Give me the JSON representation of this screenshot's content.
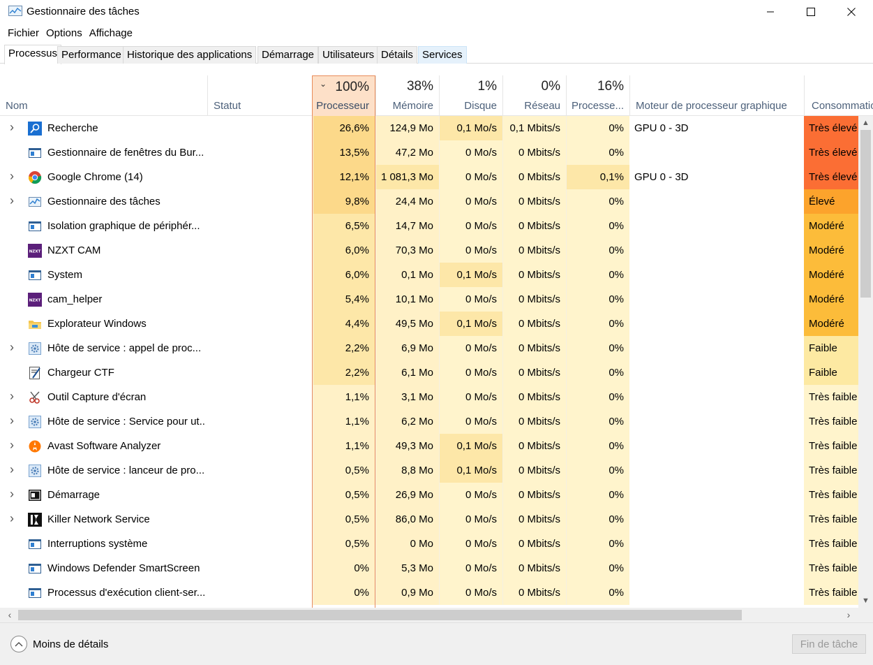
{
  "window": {
    "title": "Gestionnaire des tâches"
  },
  "menu": [
    "Fichier",
    "Options",
    "Affichage"
  ],
  "tabs": [
    {
      "label": "Processus",
      "active": true
    },
    {
      "label": "Performance"
    },
    {
      "label": "Historique des applications"
    },
    {
      "label": "Démarrage"
    },
    {
      "label": "Utilisateurs"
    },
    {
      "label": "Détails"
    },
    {
      "label": "Services",
      "hover": true
    }
  ],
  "columns": {
    "name": "Nom",
    "status": "Statut",
    "cpu": {
      "pct": "100%",
      "label": "Processeur"
    },
    "memory": {
      "pct": "38%",
      "label": "Mémoire"
    },
    "disk": {
      "pct": "1%",
      "label": "Disque"
    },
    "network": {
      "pct": "0%",
      "label": "Réseau"
    },
    "gpu": {
      "pct": "16%",
      "label": "Processe..."
    },
    "gpu_engine": "Moteur de processeur graphique",
    "power": "Consommation"
  },
  "rows": [
    {
      "expand": true,
      "icon": "search-icon",
      "name": "Recherche",
      "cpu": "26,6%",
      "mem": "124,9 Mo",
      "disk": "0,1 Mo/s",
      "net": "0,1 Mbits/s",
      "gpu": "0%",
      "engine": "GPU 0 - 3D",
      "power": "Très élevé"
    },
    {
      "expand": false,
      "icon": "window-icon",
      "name": "Gestionnaire de fenêtres du Bur...",
      "cpu": "13,5%",
      "mem": "47,2 Mo",
      "disk": "0 Mo/s",
      "net": "0 Mbits/s",
      "gpu": "0%",
      "engine": "",
      "power": "Très élevé"
    },
    {
      "expand": true,
      "icon": "chrome-icon",
      "name": "Google Chrome (14)",
      "cpu": "12,1%",
      "mem": "1 081,3 Mo",
      "disk": "0 Mo/s",
      "net": "0 Mbits/s",
      "gpu": "0,1%",
      "engine": "GPU 0 - 3D",
      "power": "Très élevé"
    },
    {
      "expand": true,
      "icon": "task-manager-icon",
      "name": "Gestionnaire des tâches",
      "cpu": "9,8%",
      "mem": "24,4 Mo",
      "disk": "0 Mo/s",
      "net": "0 Mbits/s",
      "gpu": "0%",
      "engine": "",
      "power": "Élevé"
    },
    {
      "expand": false,
      "icon": "window-icon",
      "name": "Isolation graphique de périphér...",
      "cpu": "6,5%",
      "mem": "14,7 Mo",
      "disk": "0 Mo/s",
      "net": "0 Mbits/s",
      "gpu": "0%",
      "engine": "",
      "power": "Modéré"
    },
    {
      "expand": false,
      "icon": "nzxt-icon",
      "name": "NZXT CAM",
      "cpu": "6,0%",
      "mem": "70,3 Mo",
      "disk": "0 Mo/s",
      "net": "0 Mbits/s",
      "gpu": "0%",
      "engine": "",
      "power": "Modéré"
    },
    {
      "expand": false,
      "icon": "window-icon",
      "name": "System",
      "cpu": "6,0%",
      "mem": "0,1 Mo",
      "disk": "0,1 Mo/s",
      "net": "0 Mbits/s",
      "gpu": "0%",
      "engine": "",
      "power": "Modéré"
    },
    {
      "expand": false,
      "icon": "nzxt-icon",
      "name": "cam_helper",
      "cpu": "5,4%",
      "mem": "10,1 Mo",
      "disk": "0 Mo/s",
      "net": "0 Mbits/s",
      "gpu": "0%",
      "engine": "",
      "power": "Modéré"
    },
    {
      "expand": false,
      "icon": "folder-icon",
      "name": "Explorateur Windows",
      "cpu": "4,4%",
      "mem": "49,5 Mo",
      "disk": "0,1 Mo/s",
      "net": "0 Mbits/s",
      "gpu": "0%",
      "engine": "",
      "power": "Modéré"
    },
    {
      "expand": true,
      "icon": "gear-icon",
      "name": "Hôte de service : appel de proc...",
      "cpu": "2,2%",
      "mem": "6,9 Mo",
      "disk": "0 Mo/s",
      "net": "0 Mbits/s",
      "gpu": "0%",
      "engine": "",
      "power": "Faible"
    },
    {
      "expand": false,
      "icon": "ctf-icon",
      "name": "Chargeur CTF",
      "cpu": "2,2%",
      "mem": "6,1 Mo",
      "disk": "0 Mo/s",
      "net": "0 Mbits/s",
      "gpu": "0%",
      "engine": "",
      "power": "Faible"
    },
    {
      "expand": true,
      "icon": "snipping-icon",
      "name": "Outil Capture d'écran",
      "cpu": "1,1%",
      "mem": "3,1 Mo",
      "disk": "0 Mo/s",
      "net": "0 Mbits/s",
      "gpu": "0%",
      "engine": "",
      "power": "Très faible"
    },
    {
      "expand": true,
      "icon": "gear-icon",
      "name": "Hôte de service : Service pour ut...",
      "cpu": "1,1%",
      "mem": "6,2 Mo",
      "disk": "0 Mo/s",
      "net": "0 Mbits/s",
      "gpu": "0%",
      "engine": "",
      "power": "Très faible"
    },
    {
      "expand": true,
      "icon": "avast-icon",
      "name": "Avast Software Analyzer",
      "cpu": "1,1%",
      "mem": "49,3 Mo",
      "disk": "0,1 Mo/s",
      "net": "0 Mbits/s",
      "gpu": "0%",
      "engine": "",
      "power": "Très faible"
    },
    {
      "expand": true,
      "icon": "gear-icon",
      "name": "Hôte de service : lanceur de pro...",
      "cpu": "0,5%",
      "mem": "8,8 Mo",
      "disk": "0,1 Mo/s",
      "net": "0 Mbits/s",
      "gpu": "0%",
      "engine": "",
      "power": "Très faible"
    },
    {
      "expand": true,
      "icon": "startup-icon",
      "name": "Démarrage",
      "cpu": "0,5%",
      "mem": "26,9 Mo",
      "disk": "0 Mo/s",
      "net": "0 Mbits/s",
      "gpu": "0%",
      "engine": "",
      "power": "Très faible"
    },
    {
      "expand": true,
      "icon": "killer-icon",
      "name": "Killer Network Service",
      "cpu": "0,5%",
      "mem": "86,0 Mo",
      "disk": "0 Mo/s",
      "net": "0 Mbits/s",
      "gpu": "0%",
      "engine": "",
      "power": "Très faible"
    },
    {
      "expand": false,
      "icon": "window-icon",
      "name": "Interruptions système",
      "cpu": "0,5%",
      "mem": "0 Mo",
      "disk": "0 Mo/s",
      "net": "0 Mbits/s",
      "gpu": "0%",
      "engine": "",
      "power": "Très faible"
    },
    {
      "expand": false,
      "icon": "window-icon",
      "name": "Windows Defender SmartScreen",
      "cpu": "0%",
      "mem": "5,3 Mo",
      "disk": "0 Mo/s",
      "net": "0 Mbits/s",
      "gpu": "0%",
      "engine": "",
      "power": "Très faible"
    },
    {
      "expand": false,
      "icon": "window-icon",
      "name": "Processus d'exécution client-ser...",
      "cpu": "0%",
      "mem": "0,9 Mo",
      "disk": "0 Mo/s",
      "net": "0 Mbits/s",
      "gpu": "0%",
      "engine": "",
      "power": "Très faible"
    }
  ],
  "footer": {
    "less_details": "Moins de détails",
    "end_task": "Fin de tâche"
  },
  "colors": {
    "cpu_strong": "#fcd98a",
    "cpu_mid": "#fde7a8",
    "cpu_light": "#fff1c7",
    "cell_light": "#fff4cc",
    "power_very_high": "#fb6e34",
    "power_high": "#fca32c",
    "power_moderate": "#fcbc3a",
    "power_low": "#fde9a2",
    "power_very_low": "#fff4cc"
  }
}
